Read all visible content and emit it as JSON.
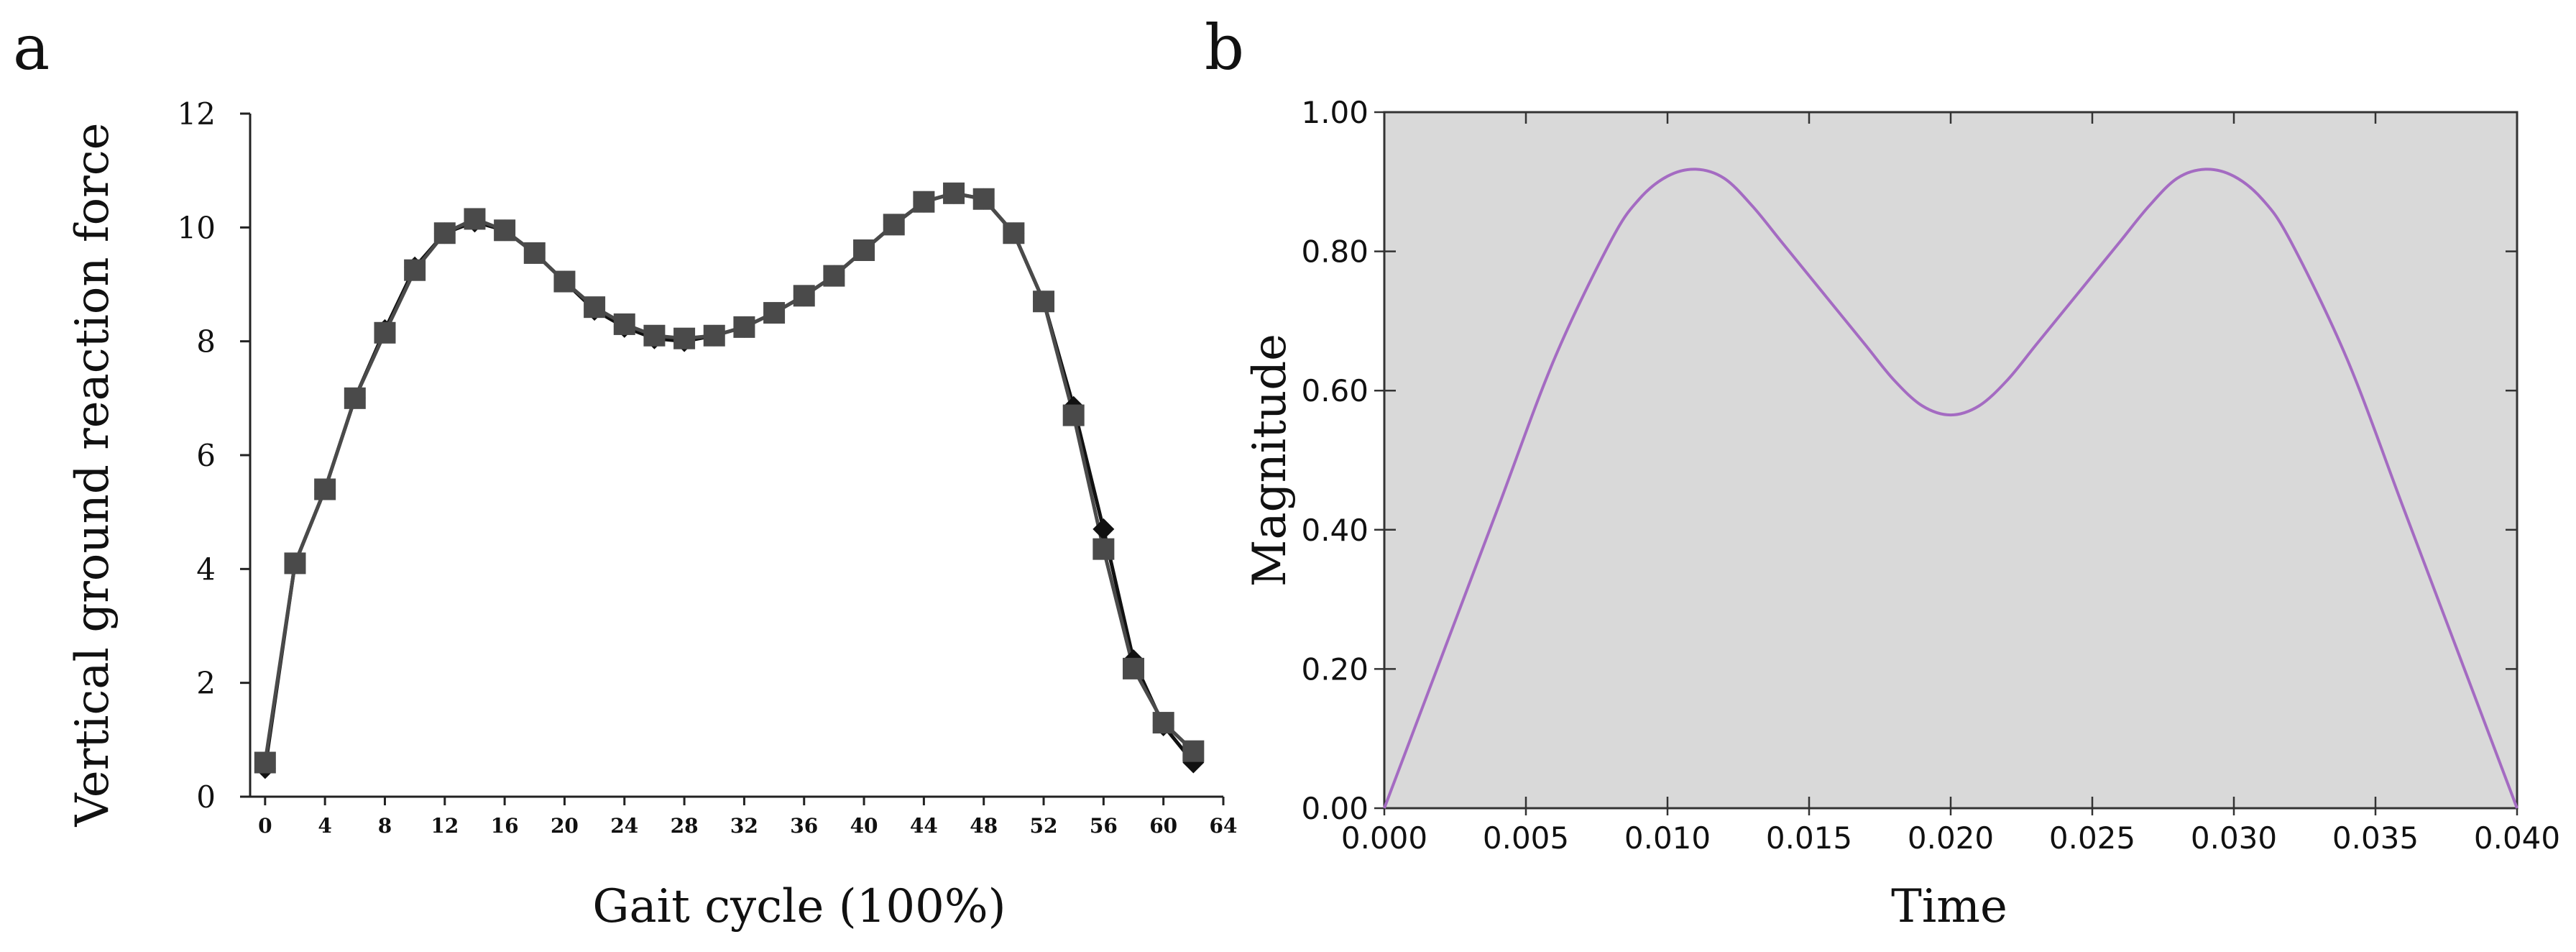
{
  "panel_labels": [
    "a",
    "b"
  ],
  "chart_data": [
    {
      "type": "line",
      "panel": "a",
      "title": "",
      "xlabel": "Gait cycle (100%)",
      "ylabel": "Vertical ground reaction force",
      "xlim": [
        -1,
        64
      ],
      "ylim": [
        0,
        12
      ],
      "xticks": [
        0,
        4,
        8,
        12,
        16,
        20,
        24,
        28,
        32,
        36,
        40,
        44,
        48,
        52,
        56,
        60,
        64
      ],
      "yticks": [
        0,
        2,
        4,
        6,
        8,
        10,
        12
      ],
      "series": [
        {
          "name": "series-diamond",
          "marker": "diamond",
          "color": "#111111",
          "x": [
            0,
            2,
            4,
            6,
            8,
            10,
            12,
            14,
            16,
            18,
            20,
            22,
            24,
            26,
            28,
            30,
            32,
            34,
            36,
            38,
            40,
            42,
            44,
            46,
            48,
            50,
            52,
            54,
            56,
            58,
            60,
            62
          ],
          "y": [
            0.5,
            4.1,
            5.4,
            7.0,
            8.2,
            9.3,
            9.9,
            10.1,
            9.95,
            9.55,
            9.05,
            8.55,
            8.25,
            8.05,
            8.0,
            8.1,
            8.25,
            8.5,
            8.8,
            9.15,
            9.6,
            10.05,
            10.45,
            10.6,
            10.5,
            9.9,
            8.7,
            6.85,
            4.7,
            2.4,
            1.25,
            0.6
          ]
        },
        {
          "name": "series-square",
          "marker": "square",
          "color": "#4a4a4a",
          "x": [
            0,
            2,
            4,
            6,
            8,
            10,
            12,
            14,
            16,
            18,
            20,
            22,
            24,
            26,
            28,
            30,
            32,
            34,
            36,
            38,
            40,
            42,
            44,
            46,
            48,
            50,
            52,
            54,
            56,
            58,
            60,
            62
          ],
          "y": [
            0.6,
            4.1,
            5.4,
            7.0,
            8.15,
            9.25,
            9.9,
            10.15,
            9.95,
            9.55,
            9.05,
            8.6,
            8.3,
            8.1,
            8.05,
            8.1,
            8.25,
            8.5,
            8.8,
            9.15,
            9.6,
            10.05,
            10.45,
            10.6,
            10.5,
            9.9,
            8.7,
            6.7,
            4.35,
            2.25,
            1.3,
            0.8
          ]
        }
      ]
    },
    {
      "type": "line",
      "panel": "b",
      "title": "",
      "xlabel": "Time",
      "ylabel": "Magnitude",
      "xlim": [
        0,
        0.04
      ],
      "ylim": [
        0,
        1.0
      ],
      "xticks": [
        0,
        0.005,
        0.01,
        0.015,
        0.02,
        0.025,
        0.03,
        0.035,
        0.04
      ],
      "xticklabels": [
        "0.000",
        "0.005",
        "0.010",
        "0.015",
        "0.020",
        "0.025",
        "0.030",
        "0.035",
        "0.040"
      ],
      "yticks": [
        0,
        0.2,
        0.4,
        0.6,
        0.8,
        1.0
      ],
      "yticklabels": [
        "0.00",
        "0.20",
        "0.40",
        "0.60",
        "0.80",
        "1.00"
      ],
      "background": "#d9d9d9",
      "series": [
        {
          "name": "magnitude",
          "color": "#a46bc2",
          "x": [
            0,
            0.002,
            0.004,
            0.006,
            0.008,
            0.009,
            0.01,
            0.011,
            0.012,
            0.013,
            0.014,
            0.015,
            0.016,
            0.017,
            0.018,
            0.019,
            0.02,
            0.021,
            0.022,
            0.023,
            0.024,
            0.025,
            0.026,
            0.027,
            0.028,
            0.029,
            0.03,
            0.031,
            0.032,
            0.034,
            0.036,
            0.038,
            0.04
          ],
          "y": [
            0,
            0.215,
            0.43,
            0.645,
            0.815,
            0.875,
            0.908,
            0.918,
            0.905,
            0.865,
            0.815,
            0.765,
            0.715,
            0.665,
            0.615,
            0.578,
            0.565,
            0.578,
            0.615,
            0.665,
            0.715,
            0.765,
            0.815,
            0.865,
            0.905,
            0.918,
            0.908,
            0.875,
            0.815,
            0.645,
            0.43,
            0.215,
            0
          ]
        }
      ]
    }
  ]
}
